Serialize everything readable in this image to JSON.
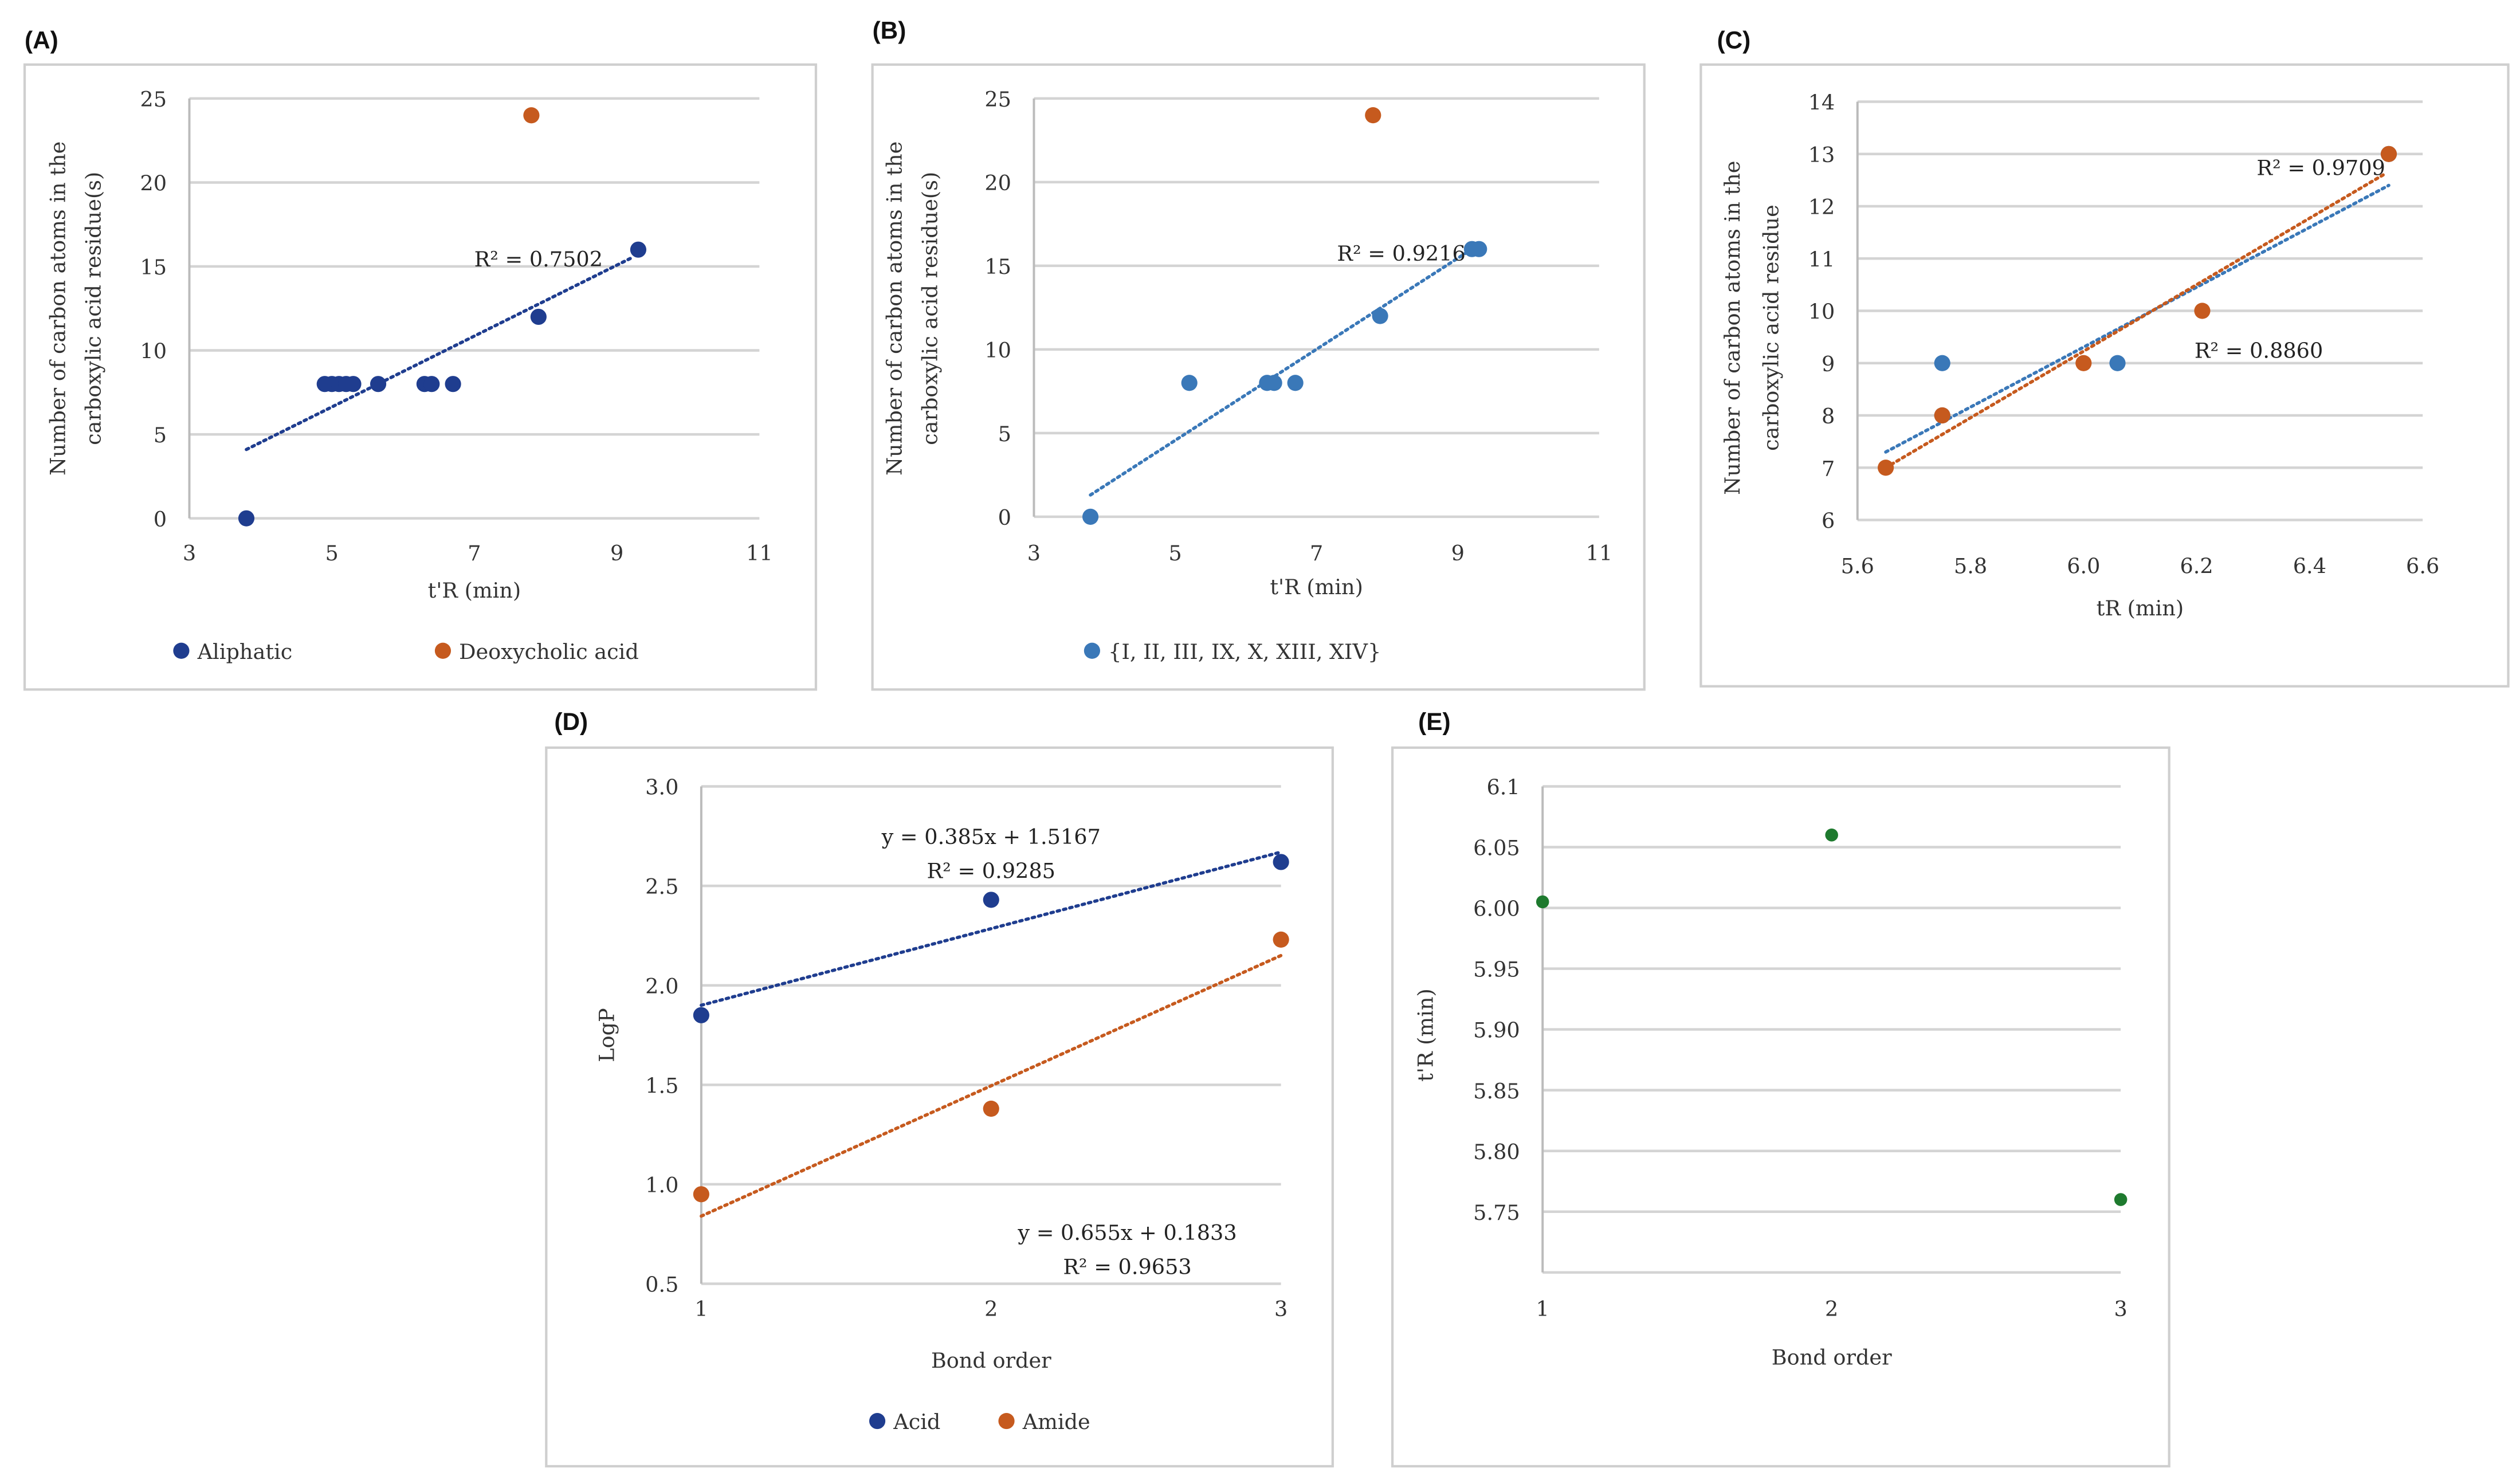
{
  "chart_data": [
    {
      "panel": "(A)",
      "type": "scatter",
      "xlabel": "t'R (min)",
      "ylabel": [
        "Number of carbon atoms in the",
        "carboxylic acid residue(s)"
      ],
      "xlim": [
        3,
        11
      ],
      "xticks": [
        3,
        5,
        7,
        9,
        11
      ],
      "ylim": [
        0,
        25
      ],
      "yticks": [
        0,
        5,
        10,
        15,
        20,
        25
      ],
      "grid": true,
      "legend": "bottom",
      "series": [
        {
          "name": "Aliphatic",
          "color": "#1f3d8f",
          "points": [
            [
              3.8,
              0
            ],
            [
              4.9,
              8
            ],
            [
              5.0,
              8
            ],
            [
              5.1,
              8
            ],
            [
              5.2,
              8
            ],
            [
              5.3,
              8
            ],
            [
              5.65,
              8
            ],
            [
              6.3,
              8
            ],
            [
              6.4,
              8
            ],
            [
              6.7,
              8
            ],
            [
              7.9,
              12
            ],
            [
              9.3,
              16
            ]
          ]
        },
        {
          "name": "Deoxycholic acid",
          "color": "#c65a1e",
          "points": [
            [
              7.8,
              24
            ]
          ]
        }
      ],
      "trendlines": [
        {
          "color": "#1f3d8f",
          "from": [
            3.8,
            4.1
          ],
          "to": [
            9.2,
            15.5
          ],
          "label": "R² = 0.7502",
          "label_at": [
            7.9,
            15
          ]
        }
      ]
    },
    {
      "panel": "(B)",
      "type": "scatter",
      "xlabel": "t'R (min)",
      "ylabel": [
        "Number of carbon atoms in the",
        "carboxylic acid residue(s)"
      ],
      "xlim": [
        3,
        11
      ],
      "xticks": [
        3,
        5,
        7,
        9,
        11
      ],
      "ylim": [
        0,
        25
      ],
      "yticks": [
        0,
        5,
        10,
        15,
        20,
        25
      ],
      "grid": true,
      "legend": "bottom",
      "series": [
        {
          "name": "{I, II, III, IX, X, XIII, XIV}",
          "color": "#3a78b8",
          "points": [
            [
              3.8,
              0
            ],
            [
              5.2,
              8
            ],
            [
              6.3,
              8
            ],
            [
              6.4,
              8
            ],
            [
              6.7,
              8
            ],
            [
              7.9,
              12
            ],
            [
              9.2,
              16
            ],
            [
              9.3,
              16
            ]
          ]
        },
        {
          "name": "",
          "color": "#c65a1e",
          "points": [
            [
              7.8,
              24
            ]
          ]
        }
      ],
      "trendlines": [
        {
          "color": "#3a78b8",
          "from": [
            3.8,
            1.3
          ],
          "to": [
            9.2,
            16
          ],
          "label": "R² = 0.9216",
          "label_at": [
            8.2,
            15.3
          ]
        }
      ]
    },
    {
      "panel": "(C)",
      "type": "scatter",
      "xlabel": "tR (min)",
      "ylabel": [
        "Number of carbon atoms in the",
        "carboxylic acid residue"
      ],
      "xlim": [
        5.6,
        6.6
      ],
      "xticks": [
        "5.6",
        "5.8",
        "6.0",
        "6.2",
        "6.4",
        "6.6"
      ],
      "ylim": [
        6,
        14
      ],
      "yticks": [
        6,
        7,
        8,
        9,
        10,
        11,
        12,
        13,
        14
      ],
      "grid": true,
      "legend": "none",
      "series": [
        {
          "name": "",
          "color": "#3a78b8",
          "points": [
            [
              5.75,
              9
            ],
            [
              5.75,
              8
            ],
            [
              6.06,
              9
            ],
            [
              6.54,
              13
            ]
          ]
        },
        {
          "name": "",
          "color": "#c65a1e",
          "points": [
            [
              5.65,
              7
            ],
            [
              5.75,
              8
            ],
            [
              6.0,
              9
            ],
            [
              6.21,
              10
            ],
            [
              6.54,
              13
            ]
          ]
        }
      ],
      "trendlines": [
        {
          "color": "#3a78b8",
          "from": [
            5.65,
            7.3
          ],
          "to": [
            6.54,
            12.4
          ],
          "label": "R² = 0.9709",
          "label_at": [
            6.42,
            12.6
          ]
        },
        {
          "color": "#c65a1e",
          "from": [
            5.65,
            7.0
          ],
          "to": [
            6.53,
            12.6
          ],
          "label": "R² = 0.8860",
          "label_at": [
            6.31,
            9.1
          ]
        }
      ]
    },
    {
      "panel": "(D)",
      "type": "scatter",
      "xlabel": "Bond order",
      "ylabel": [
        "LogP"
      ],
      "xlim": [
        1,
        3
      ],
      "xticks": [
        1,
        2,
        3
      ],
      "ylim": [
        0.5,
        3.0
      ],
      "yticks": [
        "0.5",
        "1.0",
        "1.5",
        "2.0",
        "2.5",
        "3.0"
      ],
      "grid": true,
      "legend": "bottom",
      "series": [
        {
          "name": "Acid",
          "color": "#1f3d8f",
          "points": [
            [
              1,
              1.85
            ],
            [
              2,
              2.43
            ],
            [
              3,
              2.62
            ]
          ]
        },
        {
          "name": "Amide",
          "color": "#c65a1e",
          "points": [
            [
              1,
              0.95
            ],
            [
              2,
              1.38
            ],
            [
              3,
              2.23
            ]
          ]
        }
      ],
      "trendlines": [
        {
          "color": "#1f3d8f",
          "from": [
            1,
            1.9
          ],
          "to": [
            3,
            2.67
          ],
          "label": "y = 0.385x + 1.5167",
          "label2": "R² = 0.9285",
          "label_at": [
            2.0,
            2.71
          ]
        },
        {
          "color": "#c65a1e",
          "from": [
            1,
            0.84
          ],
          "to": [
            3,
            2.15
          ],
          "label": "y = 0.655x + 0.1833",
          "label2": "R² = 0.9653",
          "label_at": [
            2.47,
            0.72
          ]
        }
      ]
    },
    {
      "panel": "(E)",
      "type": "scatter",
      "xlabel": "Bond order",
      "ylabel": [
        "t'R (min)"
      ],
      "xlim": [
        1,
        3
      ],
      "xticks": [
        1,
        2,
        3
      ],
      "ylim": [
        5.7,
        6.1
      ],
      "yticks": [
        "5.75",
        "5.80",
        "5.85",
        "5.90",
        "5.95",
        "6.00",
        "6.05",
        "6.1"
      ],
      "grid": true,
      "legend": "none",
      "series": [
        {
          "name": "",
          "color": "#1e7a2e",
          "points": [
            [
              1,
              6.005
            ],
            [
              2,
              6.06
            ],
            [
              3,
              5.76
            ]
          ]
        }
      ],
      "trendlines": []
    }
  ]
}
